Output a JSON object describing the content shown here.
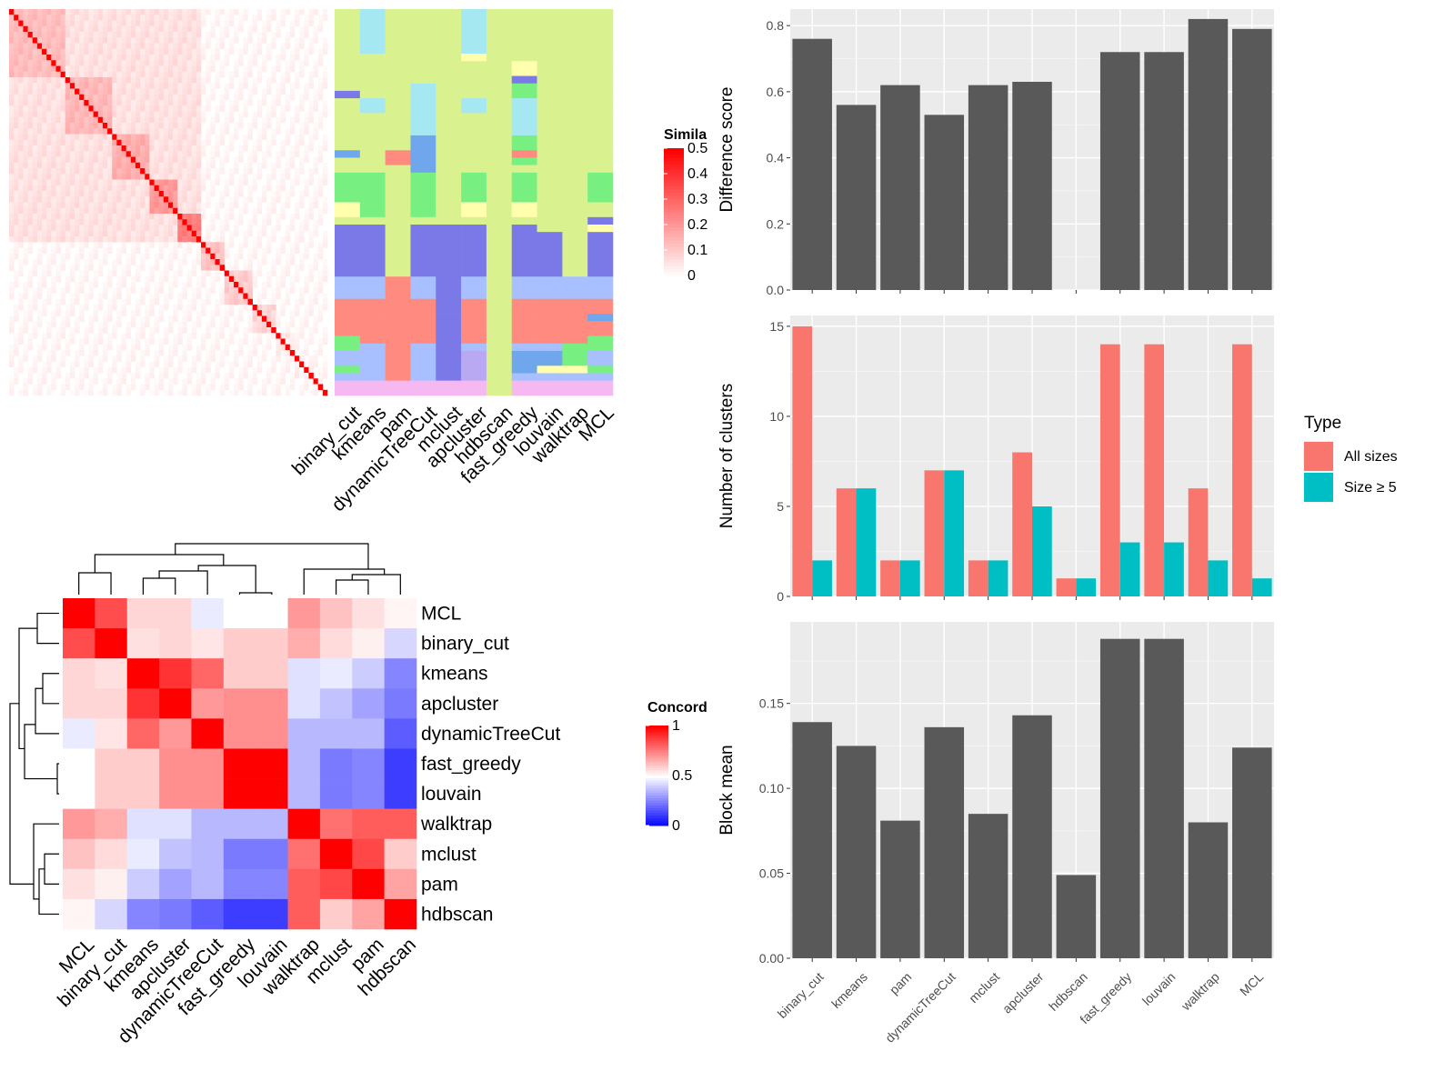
{
  "chart_data": [
    {
      "type": "heatmap",
      "title": "",
      "legend_title": "Similarity",
      "legend_ticks": [
        "0",
        "0.1",
        "0.2",
        "0.3",
        "0.4",
        "0.5"
      ],
      "range": [
        0,
        0.5
      ],
      "size": 68,
      "groups": [
        {
          "n": 12,
          "value": 0.13
        },
        {
          "n": 10,
          "value": 0.14
        },
        {
          "n": 8,
          "value": 0.16
        },
        {
          "n": 6,
          "value": 0.2
        },
        {
          "n": 5,
          "value": 0.25
        },
        {
          "n": 5,
          "value": 0.12
        },
        {
          "n": 6,
          "value": 0.1
        },
        {
          "n": 5,
          "value": 0.08
        },
        {
          "n": 4,
          "value": 0.04
        },
        {
          "n": 4,
          "value": 0.03
        },
        {
          "n": 3,
          "value": 0.02
        }
      ],
      "diagonal_value": 0.5
    },
    {
      "type": "table",
      "title": "",
      "columns": [
        "binary_cut",
        "kmeans",
        "pam",
        "dynamicTreeCut",
        "mclust",
        "apcluster",
        "hdbscan",
        "fast_greedy",
        "louvain",
        "walktrap",
        "MCL"
      ],
      "palette": {
        "A": "#d9f28f",
        "B": "#a6e8f2",
        "C": "#7b79e8",
        "D": "#ff8a80",
        "E": "#78f081",
        "F": "#ffffae",
        "G": "#a8c0ff",
        "H": "#6fa6ec",
        "I": "#f5b8f0",
        "J": "#b9a8f2"
      },
      "rows": [
        {
          "n": 6,
          "cells": [
            "A",
            "B",
            "A",
            "A",
            "A",
            "B",
            "A",
            "A",
            "A",
            "A",
            "A"
          ]
        },
        {
          "n": 1,
          "cells": [
            "A",
            "A",
            "A",
            "A",
            "A",
            "F",
            "A",
            "A",
            "A",
            "A",
            "A"
          ]
        },
        {
          "n": 2,
          "cells": [
            "A",
            "A",
            "A",
            "A",
            "A",
            "A",
            "A",
            "F",
            "A",
            "A",
            "A"
          ]
        },
        {
          "n": 1,
          "cells": [
            "A",
            "A",
            "A",
            "A",
            "A",
            "A",
            "A",
            "C",
            "A",
            "A",
            "A"
          ]
        },
        {
          "n": 1,
          "cells": [
            "A",
            "A",
            "A",
            "B",
            "A",
            "A",
            "A",
            "E",
            "A",
            "A",
            "A"
          ]
        },
        {
          "n": 1,
          "cells": [
            "C",
            "A",
            "A",
            "B",
            "A",
            "A",
            "A",
            "E",
            "A",
            "A",
            "A"
          ]
        },
        {
          "n": 2,
          "cells": [
            "A",
            "B",
            "A",
            "B",
            "A",
            "B",
            "A",
            "B",
            "A",
            "A",
            "A"
          ]
        },
        {
          "n": 3,
          "cells": [
            "A",
            "A",
            "A",
            "B",
            "A",
            "A",
            "A",
            "B",
            "A",
            "A",
            "A"
          ]
        },
        {
          "n": 2,
          "cells": [
            "A",
            "A",
            "A",
            "H",
            "A",
            "A",
            "A",
            "E",
            "A",
            "A",
            "A"
          ]
        },
        {
          "n": 1,
          "cells": [
            "H",
            "A",
            "D",
            "H",
            "A",
            "A",
            "A",
            "D",
            "A",
            "A",
            "A"
          ]
        },
        {
          "n": 1,
          "cells": [
            "A",
            "A",
            "D",
            "H",
            "A",
            "A",
            "A",
            "E",
            "A",
            "A",
            "A"
          ]
        },
        {
          "n": 1,
          "cells": [
            "A",
            "A",
            "A",
            "H",
            "A",
            "A",
            "A",
            "A",
            "A",
            "A",
            "A"
          ]
        },
        {
          "n": 4,
          "cells": [
            "E",
            "E",
            "A",
            "E",
            "A",
            "E",
            "A",
            "E",
            "A",
            "A",
            "E"
          ]
        },
        {
          "n": 2,
          "cells": [
            "F",
            "E",
            "A",
            "E",
            "A",
            "F",
            "A",
            "F",
            "A",
            "A",
            "A"
          ]
        },
        {
          "n": 1,
          "cells": [
            "A",
            "A",
            "A",
            "A",
            "A",
            "A",
            "A",
            "A",
            "A",
            "A",
            "C"
          ]
        },
        {
          "n": 1,
          "cells": [
            "C",
            "C",
            "A",
            "C",
            "C",
            "C",
            "A",
            "C",
            "A",
            "A",
            "F"
          ]
        },
        {
          "n": 6,
          "cells": [
            "C",
            "C",
            "A",
            "C",
            "C",
            "C",
            "A",
            "C",
            "C",
            "A",
            "C"
          ]
        },
        {
          "n": 3,
          "cells": [
            "G",
            "G",
            "D",
            "G",
            "C",
            "G",
            "A",
            "G",
            "G",
            "G",
            "G"
          ]
        },
        {
          "n": 2,
          "cells": [
            "D",
            "D",
            "D",
            "D",
            "C",
            "D",
            "A",
            "D",
            "D",
            "D",
            "D"
          ]
        },
        {
          "n": 1,
          "cells": [
            "D",
            "D",
            "D",
            "D",
            "C",
            "D",
            "A",
            "D",
            "D",
            "D",
            "H"
          ]
        },
        {
          "n": 2,
          "cells": [
            "D",
            "D",
            "D",
            "D",
            "C",
            "D",
            "A",
            "D",
            "D",
            "D",
            "D"
          ]
        },
        {
          "n": 1,
          "cells": [
            "E",
            "D",
            "D",
            "D",
            "C",
            "D",
            "A",
            "D",
            "D",
            "D",
            "E"
          ]
        },
        {
          "n": 1,
          "cells": [
            "E",
            "G",
            "D",
            "G",
            "C",
            "G",
            "A",
            "G",
            "G",
            "E",
            "E"
          ]
        },
        {
          "n": 2,
          "cells": [
            "G",
            "G",
            "D",
            "G",
            "C",
            "J",
            "A",
            "H",
            "H",
            "E",
            "G"
          ]
        },
        {
          "n": 1,
          "cells": [
            "E",
            "G",
            "D",
            "G",
            "C",
            "J",
            "A",
            "H",
            "F",
            "F",
            "E"
          ]
        },
        {
          "n": 1,
          "cells": [
            "G",
            "G",
            "D",
            "G",
            "C",
            "J",
            "A",
            "G",
            "G",
            "G",
            "G"
          ]
        },
        {
          "n": 2,
          "cells": [
            "I",
            "I",
            "I",
            "I",
            "I",
            "I",
            "A",
            "I",
            "I",
            "I",
            "I"
          ]
        }
      ]
    },
    {
      "type": "heatmap",
      "title": "",
      "legend_title": "Concordance",
      "legend_ticks": [
        "0",
        "0.5",
        "1"
      ],
      "range": [
        0,
        1
      ],
      "labels": [
        "MCL",
        "binary_cut",
        "kmeans",
        "apcluster",
        "dynamicTreeCut",
        "fast_greedy",
        "louvain",
        "walktrap",
        "mclust",
        "pam",
        "hdbscan"
      ],
      "matrix": [
        [
          1.0,
          0.85,
          0.58,
          0.58,
          0.46,
          0.5,
          0.5,
          0.7,
          0.62,
          0.56,
          0.52
        ],
        [
          0.85,
          1.0,
          0.56,
          0.58,
          0.55,
          0.6,
          0.6,
          0.66,
          0.57,
          0.53,
          0.42
        ],
        [
          0.58,
          0.56,
          1.0,
          0.9,
          0.8,
          0.6,
          0.6,
          0.44,
          0.46,
          0.4,
          0.26
        ],
        [
          0.58,
          0.58,
          0.9,
          1.0,
          0.7,
          0.72,
          0.72,
          0.44,
          0.38,
          0.32,
          0.24
        ],
        [
          0.46,
          0.55,
          0.8,
          0.7,
          1.0,
          0.72,
          0.72,
          0.36,
          0.36,
          0.36,
          0.18
        ],
        [
          0.5,
          0.6,
          0.6,
          0.72,
          0.72,
          1.0,
          1.0,
          0.36,
          0.24,
          0.26,
          0.12
        ],
        [
          0.5,
          0.6,
          0.6,
          0.72,
          0.72,
          1.0,
          1.0,
          0.36,
          0.24,
          0.26,
          0.12
        ],
        [
          0.7,
          0.66,
          0.44,
          0.44,
          0.36,
          0.36,
          0.36,
          1.0,
          0.78,
          0.82,
          0.82
        ],
        [
          0.62,
          0.57,
          0.46,
          0.38,
          0.36,
          0.24,
          0.24,
          0.78,
          1.0,
          0.86,
          0.6
        ],
        [
          0.56,
          0.53,
          0.4,
          0.32,
          0.36,
          0.26,
          0.26,
          0.82,
          0.86,
          1.0,
          0.68
        ],
        [
          0.52,
          0.42,
          0.26,
          0.24,
          0.18,
          0.12,
          0.12,
          0.82,
          0.6,
          0.68,
          1.0
        ]
      ]
    },
    {
      "type": "bar",
      "title": "",
      "xlabel": "",
      "ylabel": "Difference score",
      "ylim": [
        0,
        0.85
      ],
      "yticks": [
        0,
        0.2,
        0.4,
        0.6,
        0.8
      ],
      "ytick_labels": [
        "0.0",
        "0.2",
        "0.4",
        "0.6",
        "0.8"
      ],
      "categories": [
        "binary_cut",
        "kmeans",
        "pam",
        "dynamicTreeCut",
        "mclust",
        "apcluster",
        "hdbscan",
        "fast_greedy",
        "louvain",
        "walktrap",
        "MCL"
      ],
      "values": [
        0.76,
        0.56,
        0.62,
        0.53,
        0.62,
        0.63,
        null,
        0.72,
        0.72,
        0.82,
        0.79
      ]
    },
    {
      "type": "bar",
      "title": "",
      "xlabel": "",
      "ylabel": "Number of clusters",
      "ylim": [
        0,
        15.6
      ],
      "yticks": [
        0,
        5,
        10,
        15
      ],
      "ytick_labels": [
        "0",
        "5",
        "10",
        "15"
      ],
      "legend": {
        "title": "Type",
        "placement": "right"
      },
      "categories": [
        "binary_cut",
        "kmeans",
        "pam",
        "dynamicTreeCut",
        "mclust",
        "apcluster",
        "hdbscan",
        "fast_greedy",
        "louvain",
        "walktrap",
        "MCL"
      ],
      "series": [
        {
          "name": "All sizes",
          "color": "#f8766d",
          "values": [
            15,
            6,
            2,
            7,
            2,
            8,
            1,
            14,
            14,
            6,
            14
          ]
        },
        {
          "name": "Size ≥ 5",
          "color": "#00bfc4",
          "values": [
            2,
            6,
            2,
            7,
            2,
            5,
            1,
            3,
            3,
            2,
            1
          ]
        }
      ]
    },
    {
      "type": "bar",
      "title": "",
      "xlabel": "",
      "ylabel": "Block mean",
      "ylim": [
        0,
        0.198
      ],
      "yticks": [
        0,
        0.05,
        0.1,
        0.15
      ],
      "ytick_labels": [
        "0.00",
        "0.05",
        "0.10",
        "0.15"
      ],
      "categories": [
        "binary_cut",
        "kmeans",
        "pam",
        "dynamicTreeCut",
        "mclust",
        "apcluster",
        "hdbscan",
        "fast_greedy",
        "louvain",
        "walktrap",
        "MCL"
      ],
      "values": [
        0.139,
        0.125,
        0.081,
        0.136,
        0.085,
        0.143,
        0.049,
        0.188,
        0.188,
        0.08,
        0.124
      ]
    }
  ]
}
